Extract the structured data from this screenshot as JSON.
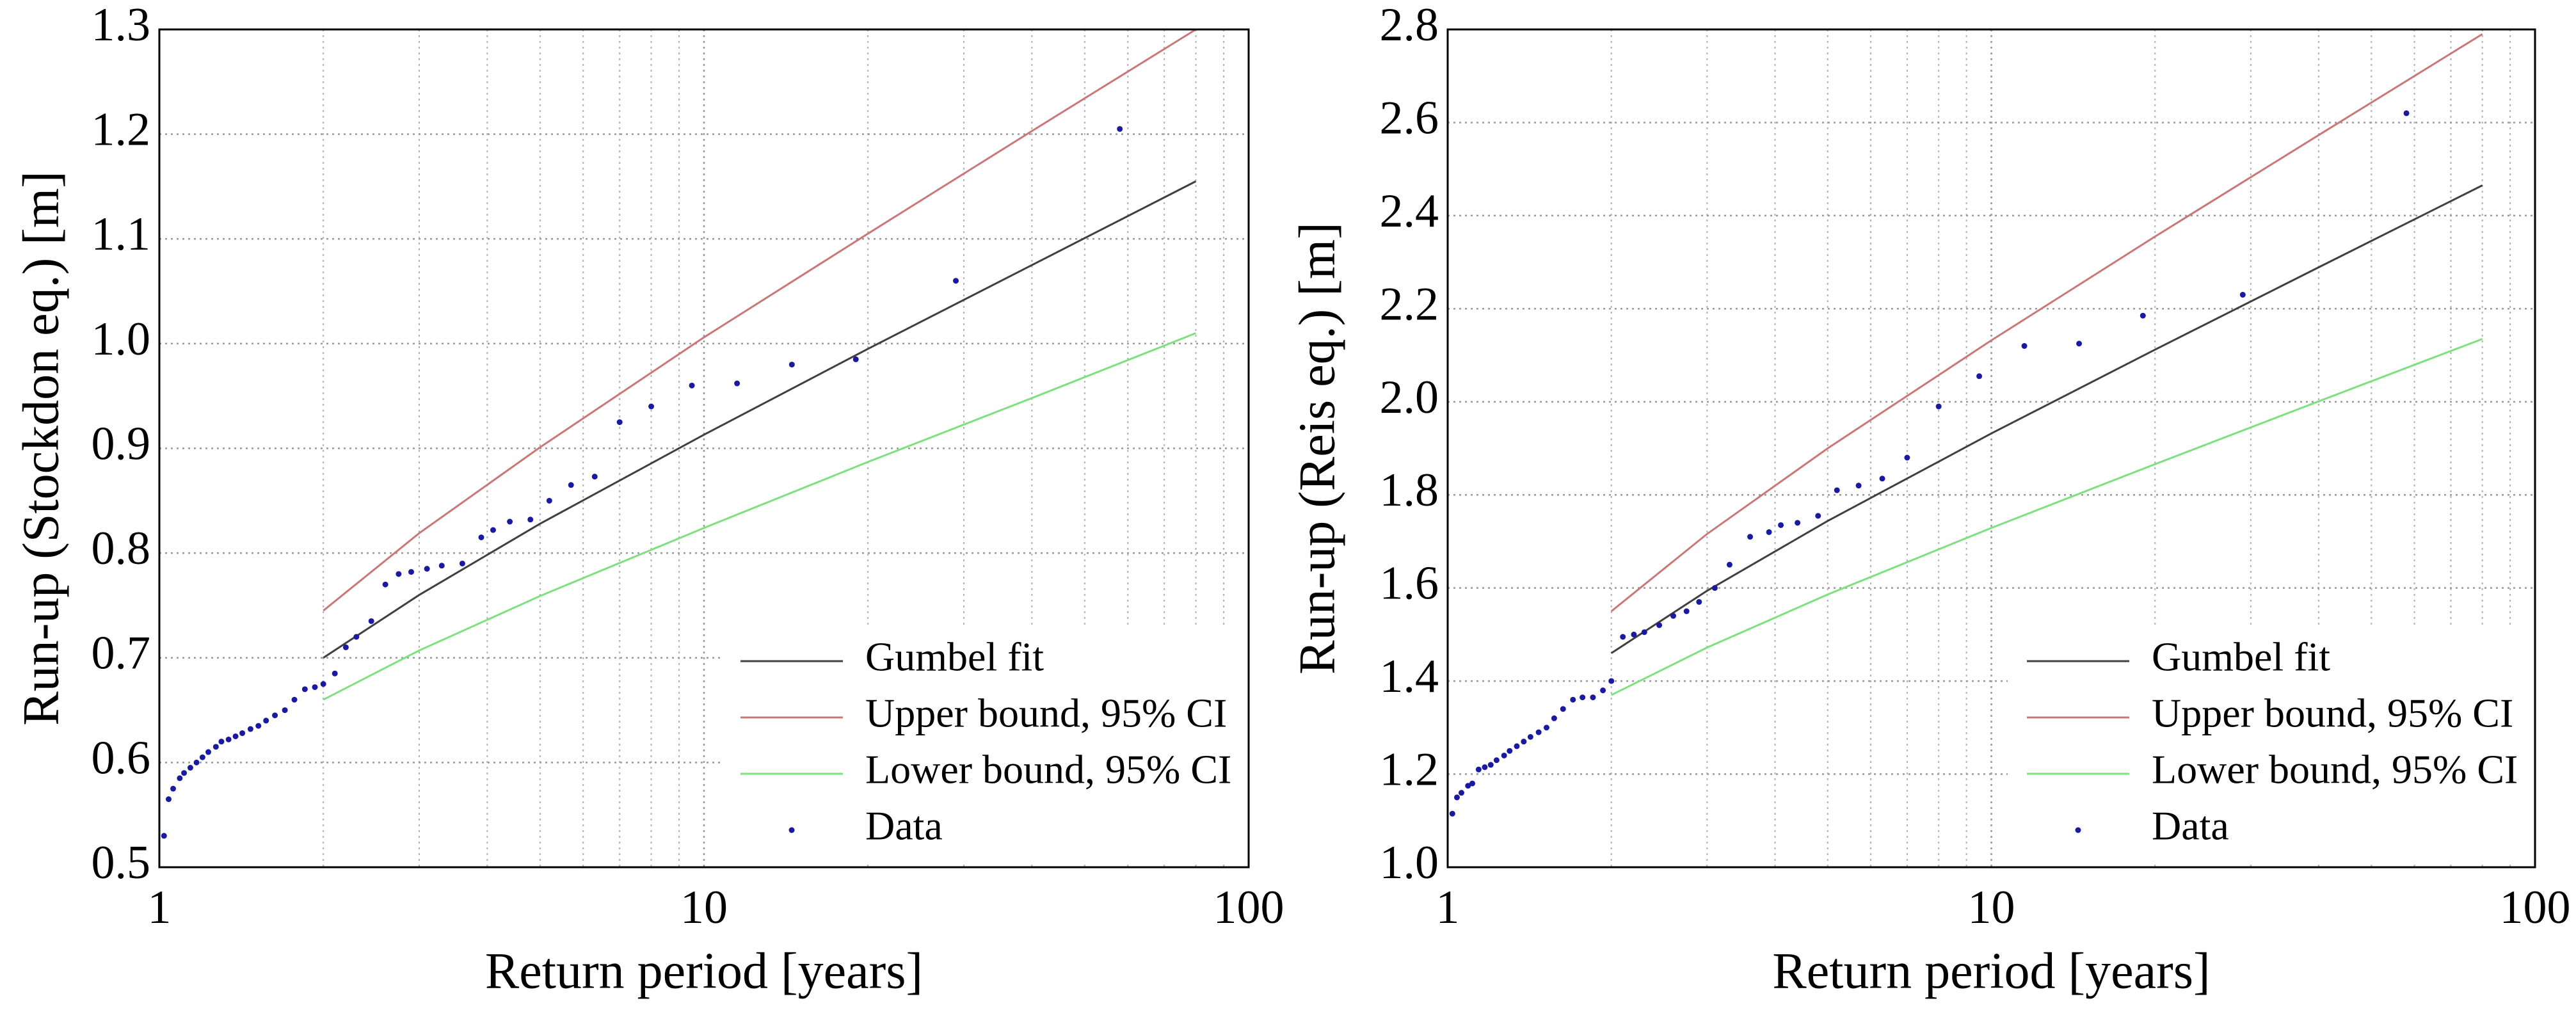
{
  "chart_data": [
    {
      "type": "line",
      "xlabel": "Return period [years]",
      "ylabel": "Run-up (Stockdon eq.) [m]",
      "xscale": "log",
      "xlim": [
        1,
        100
      ],
      "xticks": [
        1,
        10,
        100
      ],
      "ylim": [
        0.5,
        1.3
      ],
      "yticks": [
        0.5,
        0.6,
        0.7,
        0.8,
        0.9,
        {
          "value": 1.0,
          "label": "1.0"
        },
        1.1,
        1.2,
        1.3
      ],
      "grid": true,
      "legend": "lower right",
      "series": [
        {
          "name": "Gumbel fit",
          "style": "line",
          "color": "#404040",
          "x": [
            2,
            3,
            5,
            10,
            20,
            40,
            80
          ],
          "values": [
            0.7,
            0.76,
            0.828,
            0.913,
            0.995,
            1.075,
            1.155
          ]
        },
        {
          "name": "Upper bound, 95% CI",
          "style": "line",
          "color": "#c87878",
          "x": [
            2,
            3,
            5,
            10,
            20,
            40,
            80
          ],
          "values": [
            0.745,
            0.819,
            0.901,
            1.006,
            1.105,
            1.203,
            1.3
          ]
        },
        {
          "name": "Lower bound, 95% CI",
          "style": "line",
          "color": "#7ee07e",
          "x": [
            2,
            3,
            5,
            10,
            20,
            40,
            80
          ],
          "values": [
            0.66,
            0.707,
            0.759,
            0.824,
            0.887,
            0.948,
            1.01
          ]
        },
        {
          "name": "Data",
          "style": "marker",
          "color": "#1a1aa0",
          "x": [
            1.02,
            1.04,
            1.06,
            1.09,
            1.11,
            1.14,
            1.17,
            1.2,
            1.23,
            1.27,
            1.3,
            1.34,
            1.38,
            1.42,
            1.47,
            1.52,
            1.57,
            1.63,
            1.7,
            1.77,
            1.85,
            1.93,
            2.0,
            2.1,
            2.2,
            2.3,
            2.45,
            2.6,
            2.75,
            2.9,
            3.1,
            3.3,
            3.6,
            3.9,
            4.1,
            4.4,
            4.8,
            5.2,
            5.7,
            6.3,
            7.0,
            8.0,
            9.5,
            11.5,
            14.5,
            19,
            29,
            58
          ],
          "values": [
            0.53,
            0.565,
            0.575,
            0.585,
            0.59,
            0.595,
            0.6,
            0.605,
            0.61,
            0.615,
            0.62,
            0.622,
            0.625,
            0.628,
            0.632,
            0.635,
            0.64,
            0.645,
            0.65,
            0.66,
            0.67,
            0.672,
            0.675,
            0.685,
            0.71,
            0.72,
            0.735,
            0.77,
            0.78,
            0.782,
            0.785,
            0.788,
            0.79,
            0.815,
            0.822,
            0.83,
            0.832,
            0.85,
            0.865,
            0.873,
            0.925,
            0.94,
            0.96,
            0.962,
            0.98,
            0.985,
            1.06,
            1.205
          ]
        }
      ]
    },
    {
      "type": "line",
      "xlabel": "Return period [years]",
      "ylabel": "Run-up (Reis eq.) [m]",
      "xscale": "log",
      "xlim": [
        1,
        100
      ],
      "xticks": [
        1,
        10,
        100
      ],
      "ylim": [
        1.0,
        2.8
      ],
      "yticks": [
        {
          "value": 1.0,
          "label": "1.0"
        },
        1.2,
        1.4,
        1.6,
        1.8,
        {
          "value": 2.0,
          "label": "2.0"
        },
        2.2,
        2.4,
        2.6,
        2.8
      ],
      "grid": true,
      "legend": "lower right",
      "series": [
        {
          "name": "Gumbel fit",
          "style": "line",
          "color": "#404040",
          "x": [
            2,
            3,
            5,
            10,
            20,
            40,
            80
          ],
          "values": [
            1.46,
            1.594,
            1.744,
            1.932,
            2.112,
            2.289,
            2.465
          ]
        },
        {
          "name": "Upper bound, 95% CI",
          "style": "line",
          "color": "#c87878",
          "x": [
            2,
            3,
            5,
            10,
            20,
            40,
            80
          ],
          "values": [
            1.55,
            1.716,
            1.9,
            2.132,
            2.355,
            2.573,
            2.79
          ]
        },
        {
          "name": "Lower bound, 95% CI",
          "style": "line",
          "color": "#7ee07e",
          "x": [
            2,
            3,
            5,
            10,
            20,
            40,
            80
          ],
          "values": [
            1.37,
            1.472,
            1.586,
            1.729,
            1.866,
            2.001,
            2.135
          ]
        },
        {
          "name": "Data",
          "style": "marker",
          "color": "#1a1aa0",
          "x": [
            1.02,
            1.04,
            1.06,
            1.09,
            1.11,
            1.14,
            1.17,
            1.2,
            1.23,
            1.27,
            1.3,
            1.34,
            1.38,
            1.42,
            1.47,
            1.52,
            1.57,
            1.63,
            1.7,
            1.77,
            1.85,
            1.93,
            2.0,
            2.1,
            2.2,
            2.3,
            2.45,
            2.6,
            2.75,
            2.9,
            3.1,
            3.3,
            3.6,
            3.9,
            4.1,
            4.4,
            4.8,
            5.2,
            5.7,
            6.3,
            7.0,
            8.0,
            9.5,
            11.5,
            14.5,
            19,
            29,
            58
          ],
          "values": [
            1.115,
            1.15,
            1.16,
            1.175,
            1.18,
            1.21,
            1.215,
            1.22,
            1.23,
            1.24,
            1.25,
            1.26,
            1.27,
            1.28,
            1.29,
            1.3,
            1.32,
            1.34,
            1.36,
            1.365,
            1.365,
            1.38,
            1.4,
            1.495,
            1.5,
            1.505,
            1.52,
            1.54,
            1.55,
            1.57,
            1.6,
            1.65,
            1.71,
            1.72,
            1.735,
            1.74,
            1.755,
            1.81,
            1.82,
            1.835,
            1.88,
            1.99,
            2.055,
            2.12,
            2.125,
            2.185,
            2.23,
            2.62
          ]
        }
      ]
    }
  ]
}
